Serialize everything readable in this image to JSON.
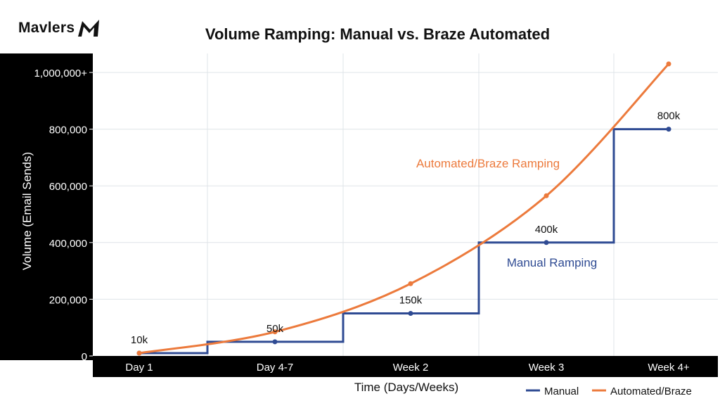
{
  "brand": {
    "logo_text": "Mavlers"
  },
  "chart_data": {
    "type": "line",
    "title": "Volume Ramping: Manual vs. Braze Automated",
    "xlabel": "Time (Days/Weeks)",
    "ylabel": "Volume (Email Sends)",
    "categories": [
      "Day 1",
      "Day 4-7",
      "Week 2",
      "Week 3",
      "Week 4+"
    ],
    "ylim": [
      0,
      1050000
    ],
    "yticks": [
      0,
      200000,
      400000,
      600000,
      800000,
      1000000
    ],
    "ytick_labels": [
      "0",
      "200,000",
      "400,000",
      "600,000",
      "800,000",
      "1,000,000+"
    ],
    "grid": true,
    "legend_position": "bottom-right",
    "series": [
      {
        "name": "Manual",
        "color": "#2f4b93",
        "step": true,
        "values": [
          10000,
          50000,
          150000,
          400000,
          800000
        ],
        "value_labels": [
          "10k",
          "50k",
          "150k",
          "400k",
          "800k"
        ],
        "annotation": "Manual Ramping"
      },
      {
        "name": "Automated/Braze",
        "color": "#ec7a3c",
        "step": false,
        "x": [
          0,
          1,
          2,
          3,
          4
        ],
        "values": [
          10000,
          85000,
          255000,
          565000,
          1030000
        ],
        "annotation": "Automated/Braze Ramping"
      }
    ]
  }
}
